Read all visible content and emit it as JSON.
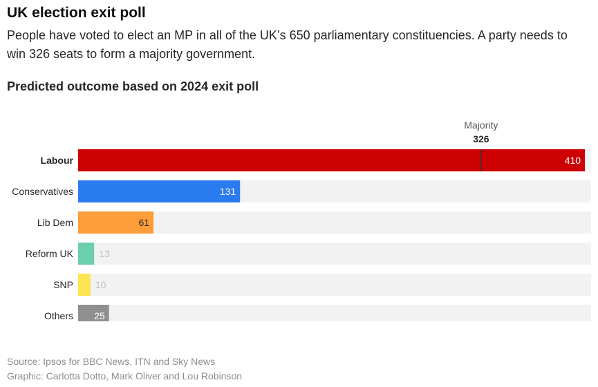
{
  "header": {
    "title": "UK election exit poll",
    "subtitle": "People have voted to elect an MP in all of the UK’s 650 parliamentary constituencies. A party needs to win 326 seats to form a majority government."
  },
  "chart_data": {
    "type": "bar",
    "orientation": "horizontal",
    "title": "Predicted outcome based on 2024 exit poll",
    "categories": [
      "Labour",
      "Conservatives",
      "Lib Dem",
      "Reform UK",
      "SNP",
      "Others"
    ],
    "values": [
      410,
      131,
      61,
      13,
      10,
      25
    ],
    "colors": [
      "#cc0000",
      "#2b7bf0",
      "#fd9e3a",
      "#6ccfab",
      "#fce452",
      "#8f8f8f"
    ],
    "label_colors": [
      "#ffffff",
      "#ffffff",
      "#262626",
      "#bfbfbf",
      "#bfbfbf",
      "#ffffff"
    ],
    "highlight_category": "Labour",
    "xlim": [
      0,
      415
    ],
    "track_color": "#f2f2f2",
    "reference_line": {
      "label": "Majority",
      "value": 326
    }
  },
  "footer": {
    "source": "Source: Ipsos for BBC News, ITN and Sky News",
    "credit": "Graphic: Carlotta Dotto, Mark Oliver and Lou Robinson"
  }
}
